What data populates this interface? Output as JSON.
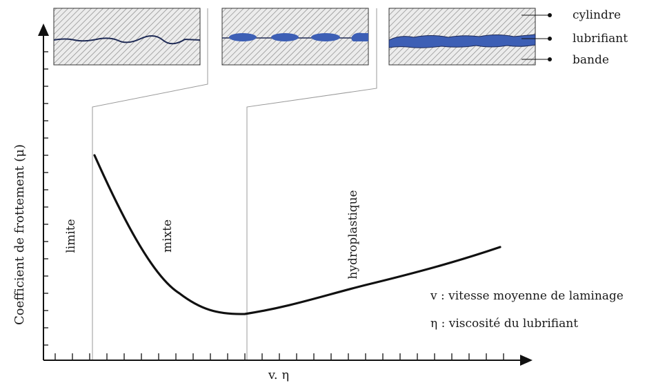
{
  "axes": {
    "ylabel": "Coefficient de frottement (μ)",
    "xlabel": "v. η"
  },
  "regimes": {
    "limite": "limite",
    "mixte": "mixte",
    "hydro": "hydroplastique"
  },
  "legend_right": {
    "v_def": "v : vitesse moyenne de laminage",
    "eta_def": "η : viscosité du lubrifiant"
  },
  "layers_legend": {
    "cylindre": "cylindre",
    "lubrifiant": "lubrifiant",
    "bande": "bande"
  },
  "colors": {
    "lubricant": "#3d5fb5",
    "hatch": "#8a8a8a",
    "box_bg": "#ececec",
    "axis": "#111111"
  }
}
